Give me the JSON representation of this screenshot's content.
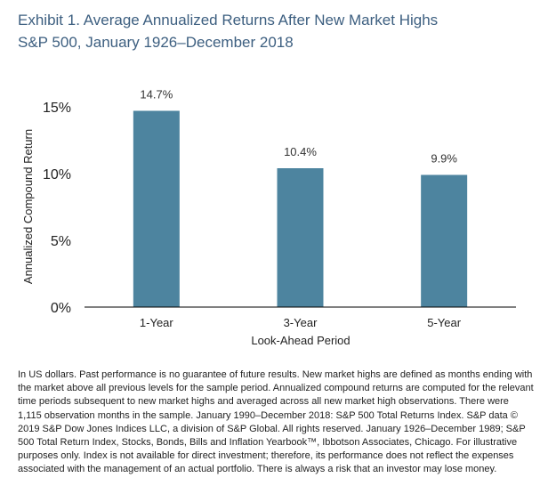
{
  "header": {
    "title": "Exhibit 1. Average Annualized Returns After New Market Highs",
    "subtitle": "S&P 500, January 1926–December 2018"
  },
  "colors": {
    "bar": "#4d849f",
    "axis": "#000000",
    "title": "#3d5f80"
  },
  "chart_data": {
    "type": "bar",
    "categories": [
      "1-Year",
      "3-Year",
      "5-Year"
    ],
    "values": [
      14.7,
      10.4,
      9.9
    ],
    "data_labels": [
      "14.7%",
      "10.4%",
      "9.9%"
    ],
    "title": "",
    "xlabel": "Look-Ahead Period",
    "ylabel": "Annualized Compound Return",
    "ylim": [
      0,
      15
    ],
    "yticks": [
      0,
      5,
      10,
      15
    ],
    "ytick_labels": [
      "0%",
      "5%",
      "10%",
      "15%"
    ],
    "grid": false,
    "legend": "none"
  },
  "footnote": "In US dollars. Past performance is no guarantee of future results. New market highs are defined as months ending with the market above all previous levels for the sample period. Annualized compound returns are computed for the relevant time periods subsequent to new market highs and averaged across all new market high observations. There were 1,115 observation months in the sample. January 1990–December 2018: S&P 500 Total Returns Index. S&P data © 2019 S&P Dow Jones Indices LLC, a division of S&P Global. All rights reserved. January 1926–December 1989; S&P 500 Total Return Index, Stocks, Bonds, Bills and Inflation Yearbook™, Ibbotson Associates, Chicago. For illustrative purposes only. Index is not available for direct investment; therefore, its performance does not reflect the expenses associated with the management of an actual portfolio. There is always a risk that an investor may lose money."
}
